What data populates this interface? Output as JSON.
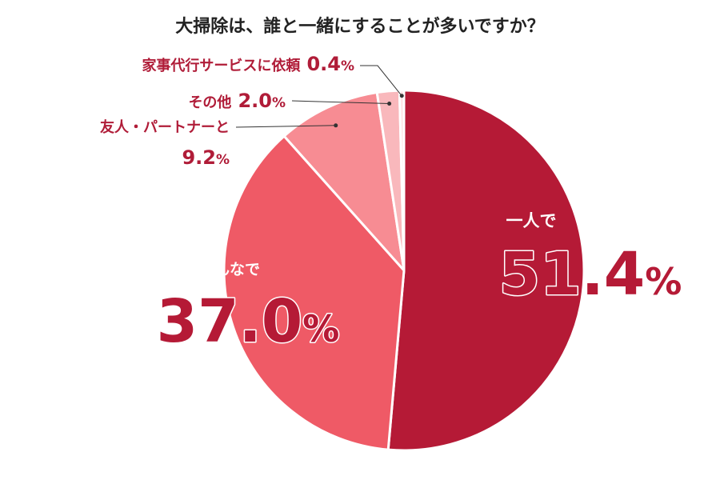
{
  "chart_data": {
    "type": "pie",
    "title": "大掃除は、誰と一緒にすることが多いですか？",
    "unit": "%",
    "slices": [
      {
        "label": "一人で",
        "value": 51.4,
        "value_text": "51.4",
        "color": "#b51a36"
      },
      {
        "label": "家族みんなで",
        "value": 37.0,
        "value_text": "37.0",
        "color": "#ef5a66"
      },
      {
        "label": "友人・パートナーと",
        "value": 9.2,
        "value_text": "9.2",
        "color": "#f78c93"
      },
      {
        "label": "その他",
        "value": 2.0,
        "value_text": "2.0",
        "color": "#f9b8bc"
      },
      {
        "label": "家事代行サービスに依頼",
        "value": 0.4,
        "value_text": "0.4",
        "color": "#fde3e5"
      }
    ]
  }
}
